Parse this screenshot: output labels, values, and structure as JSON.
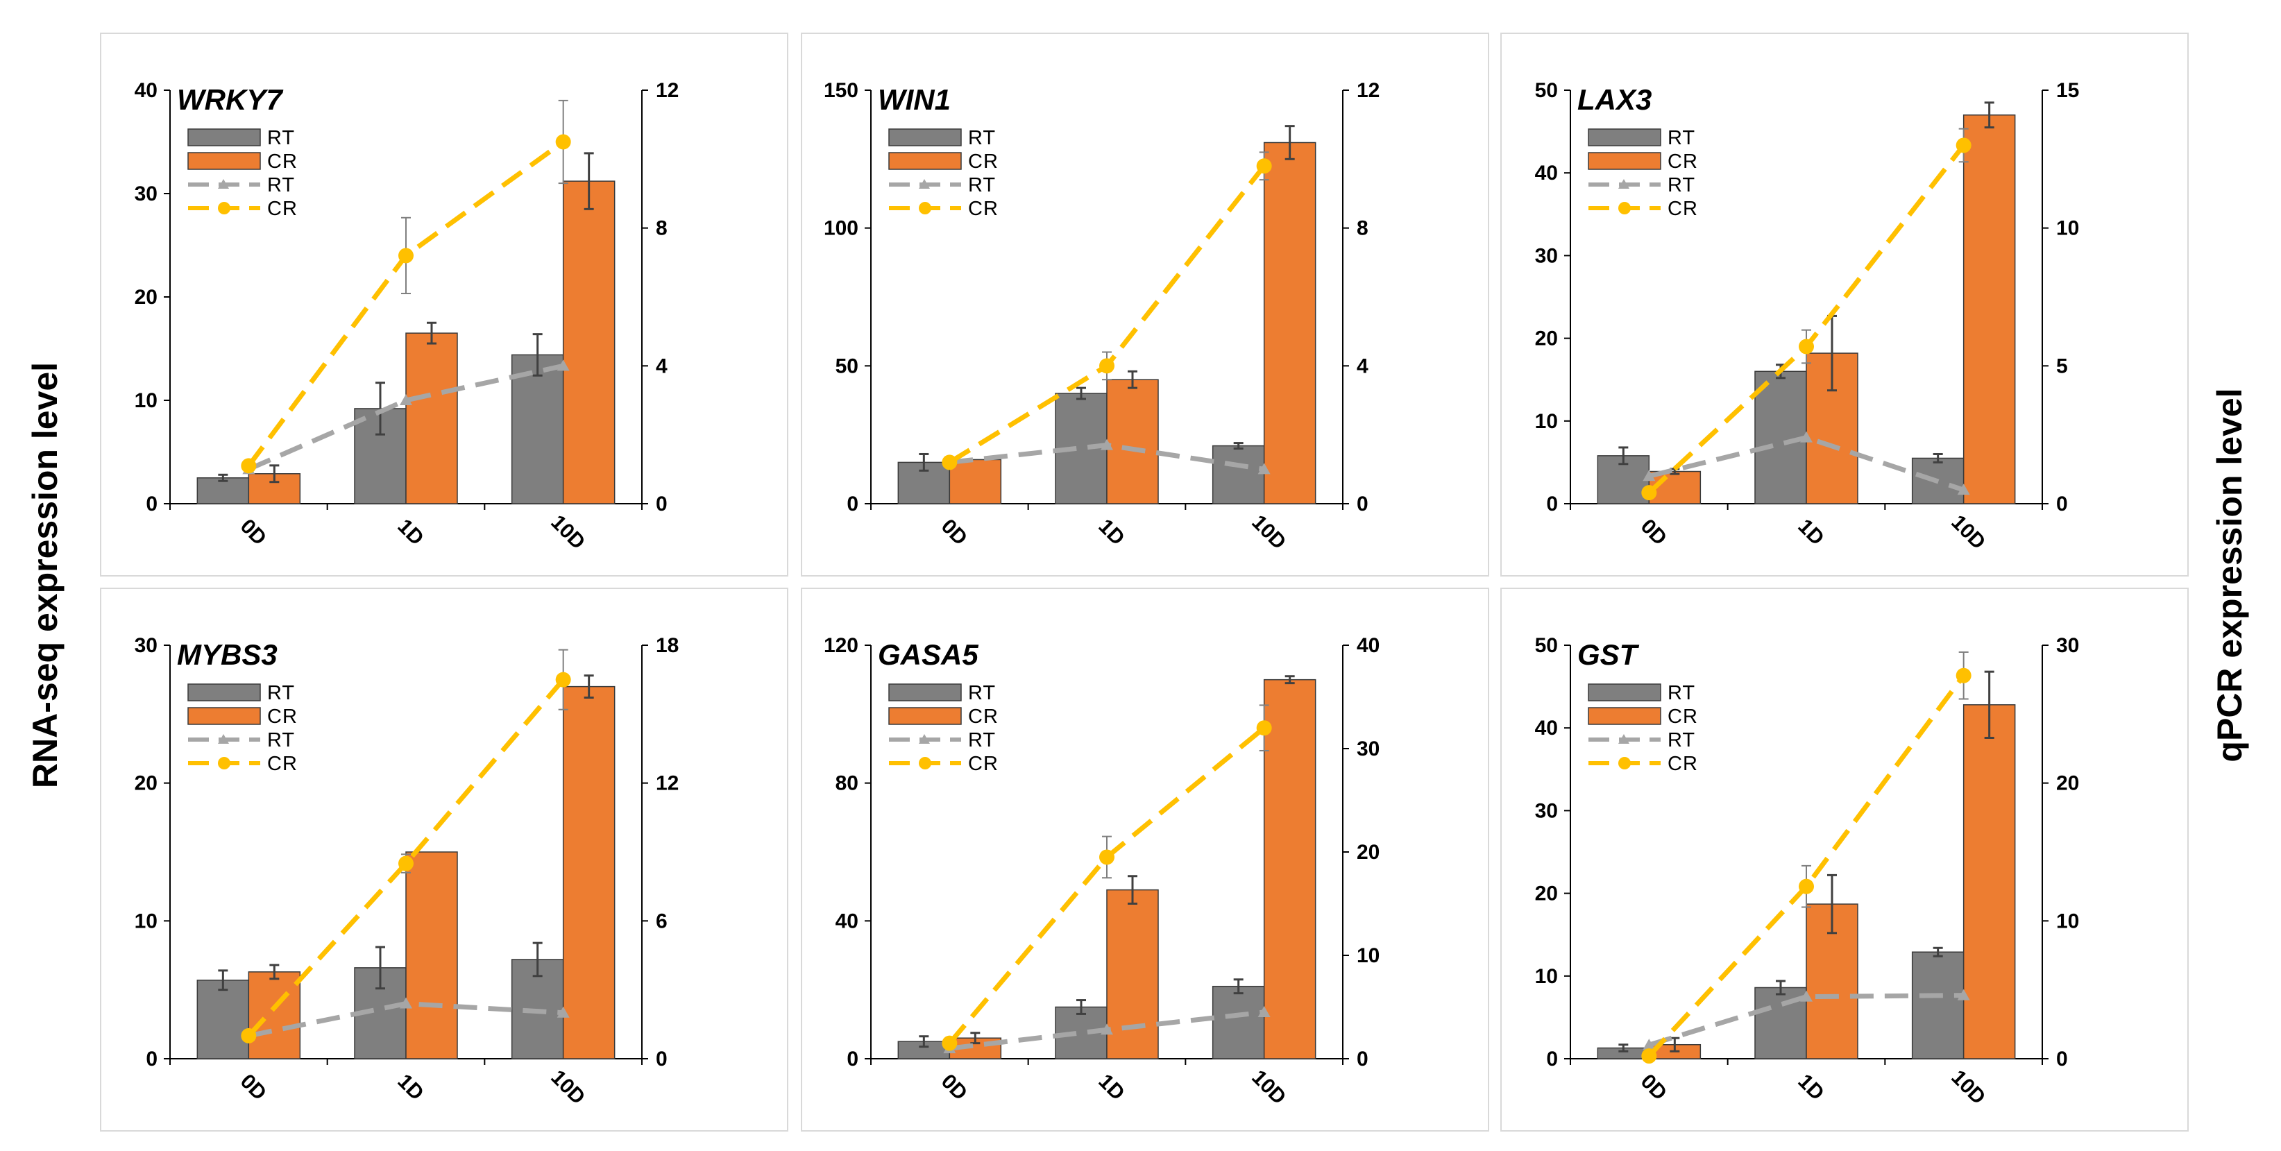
{
  "figure": {
    "left_axis_title": "RNA-seq expression level",
    "right_axis_title": "qPCR expression level"
  },
  "colors": {
    "rt_bar": "#7f7f7f",
    "cr_bar": "#ed7d31",
    "rt_line": "#a6a6a6",
    "cr_line": "#ffc000"
  },
  "chart_data": [
    {
      "type": "bar+line",
      "title": "WRKY7",
      "categories": [
        "0D",
        "1D",
        "10D"
      ],
      "ylim": [
        0,
        40
      ],
      "yticks": [
        0,
        10,
        20,
        30,
        40
      ],
      "y2lim": [
        0,
        12
      ],
      "y2ticks": [
        0,
        4,
        8,
        12
      ],
      "legend": [
        "RT",
        "CR",
        "RT",
        "CR"
      ],
      "bars": [
        {
          "name": "RT",
          "values": [
            2.5,
            9.2,
            14.4
          ],
          "errors": [
            0.3,
            2.5,
            2.0
          ]
        },
        {
          "name": "CR",
          "values": [
            2.9,
            16.5,
            31.2
          ],
          "errors": [
            0.8,
            1.0,
            2.7
          ]
        }
      ],
      "lines": [
        {
          "name": "RT",
          "values": [
            1.0,
            3.0,
            4.0
          ],
          "errors": [
            0,
            0,
            0
          ]
        },
        {
          "name": "CR",
          "values": [
            1.1,
            7.2,
            10.5
          ],
          "errors": [
            0,
            1.1,
            1.2
          ]
        }
      ]
    },
    {
      "type": "bar+line",
      "title": "WIN1",
      "categories": [
        "0D",
        "1D",
        "10D"
      ],
      "ylim": [
        0,
        150
      ],
      "yticks": [
        0,
        50,
        100,
        150
      ],
      "y2lim": [
        0,
        12
      ],
      "y2ticks": [
        0,
        4,
        8,
        12
      ],
      "legend": [
        "RT",
        "CR",
        "RT",
        "CR"
      ],
      "bars": [
        {
          "name": "RT",
          "values": [
            15,
            40,
            21
          ],
          "errors": [
            3,
            2,
            1
          ]
        },
        {
          "name": "CR",
          "values": [
            16,
            45,
            131
          ],
          "errors": [
            0,
            3,
            6
          ]
        }
      ],
      "lines": [
        {
          "name": "RT",
          "values": [
            1.2,
            1.7,
            1.0
          ],
          "errors": [
            0,
            0,
            0
          ]
        },
        {
          "name": "CR",
          "values": [
            1.2,
            4.0,
            9.8
          ],
          "errors": [
            0,
            0.4,
            0.4
          ]
        }
      ]
    },
    {
      "type": "bar+line",
      "title": "LAX3",
      "categories": [
        "0D",
        "1D",
        "10D"
      ],
      "ylim": [
        0,
        50
      ],
      "yticks": [
        0,
        10,
        20,
        30,
        40,
        50
      ],
      "y2lim": [
        0,
        15
      ],
      "y2ticks": [
        0,
        5,
        10,
        15
      ],
      "legend": [
        "RT",
        "CR",
        "RT",
        "CR"
      ],
      "bars": [
        {
          "name": "RT",
          "values": [
            5.8,
            16,
            5.5
          ],
          "errors": [
            1.0,
            0.8,
            0.5
          ]
        },
        {
          "name": "CR",
          "values": [
            3.9,
            18.2,
            47
          ],
          "errors": [
            0.3,
            4.5,
            1.5
          ]
        }
      ],
      "lines": [
        {
          "name": "RT",
          "values": [
            1.0,
            2.4,
            0.5
          ],
          "errors": [
            0,
            0,
            0
          ]
        },
        {
          "name": "CR",
          "values": [
            0.4,
            5.7,
            13.0
          ],
          "errors": [
            0,
            0.6,
            0.6
          ]
        }
      ]
    },
    {
      "type": "bar+line",
      "title": "MYBS3",
      "categories": [
        "0D",
        "1D",
        "10D"
      ],
      "ylim": [
        0,
        30
      ],
      "yticks": [
        0,
        10,
        20,
        30
      ],
      "y2lim": [
        0,
        18
      ],
      "y2ticks": [
        0,
        6,
        12,
        18
      ],
      "legend": [
        "RT",
        "CR",
        "RT",
        "CR"
      ],
      "bars": [
        {
          "name": "RT",
          "values": [
            5.7,
            6.6,
            7.2
          ],
          "errors": [
            0.7,
            1.5,
            1.2
          ]
        },
        {
          "name": "CR",
          "values": [
            6.3,
            15.0,
            27.0
          ],
          "errors": [
            0.5,
            0,
            0.8
          ]
        }
      ],
      "lines": [
        {
          "name": "RT",
          "values": [
            1.0,
            2.4,
            2.0
          ],
          "errors": [
            0,
            0,
            0
          ]
        },
        {
          "name": "CR",
          "values": [
            1.0,
            8.5,
            16.5
          ],
          "errors": [
            0,
            0.4,
            1.3
          ]
        }
      ]
    },
    {
      "type": "bar+line",
      "title": "GASA5",
      "categories": [
        "0D",
        "1D",
        "10D"
      ],
      "ylim": [
        0,
        120
      ],
      "yticks": [
        0,
        40,
        80,
        120
      ],
      "y2lim": [
        0,
        40
      ],
      "y2ticks": [
        0,
        10,
        20,
        30,
        40
      ],
      "legend": [
        "RT",
        "CR",
        "RT",
        "CR"
      ],
      "bars": [
        {
          "name": "RT",
          "values": [
            5,
            15,
            21
          ],
          "errors": [
            1.5,
            2,
            2
          ]
        },
        {
          "name": "CR",
          "values": [
            6,
            49,
            110
          ],
          "errors": [
            1.5,
            4,
            1
          ]
        }
      ],
      "lines": [
        {
          "name": "RT",
          "values": [
            1.0,
            2.8,
            4.5
          ],
          "errors": [
            0,
            0,
            0
          ]
        },
        {
          "name": "CR",
          "values": [
            1.5,
            19.5,
            32.0
          ],
          "errors": [
            0,
            2.0,
            2.2
          ]
        }
      ]
    },
    {
      "type": "bar+line",
      "title": "GST",
      "categories": [
        "0D",
        "1D",
        "10D"
      ],
      "ylim": [
        0,
        50
      ],
      "yticks": [
        0,
        10,
        20,
        30,
        40,
        50
      ],
      "y2lim": [
        0,
        30
      ],
      "y2ticks": [
        0,
        10,
        20,
        30
      ],
      "legend": [
        "RT",
        "CR",
        "RT",
        "CR"
      ],
      "bars": [
        {
          "name": "RT",
          "values": [
            1.3,
            8.6,
            12.9
          ],
          "errors": [
            0.4,
            0.8,
            0.5
          ]
        },
        {
          "name": "CR",
          "values": [
            1.7,
            18.7,
            42.8
          ],
          "errors": [
            0.8,
            3.5,
            4.0
          ]
        }
      ],
      "lines": [
        {
          "name": "RT",
          "values": [
            1.0,
            4.5,
            4.6
          ],
          "errors": [
            0,
            0,
            0
          ]
        },
        {
          "name": "CR",
          "values": [
            0.2,
            12.5,
            27.8
          ],
          "errors": [
            0,
            1.5,
            1.7
          ]
        }
      ]
    }
  ]
}
